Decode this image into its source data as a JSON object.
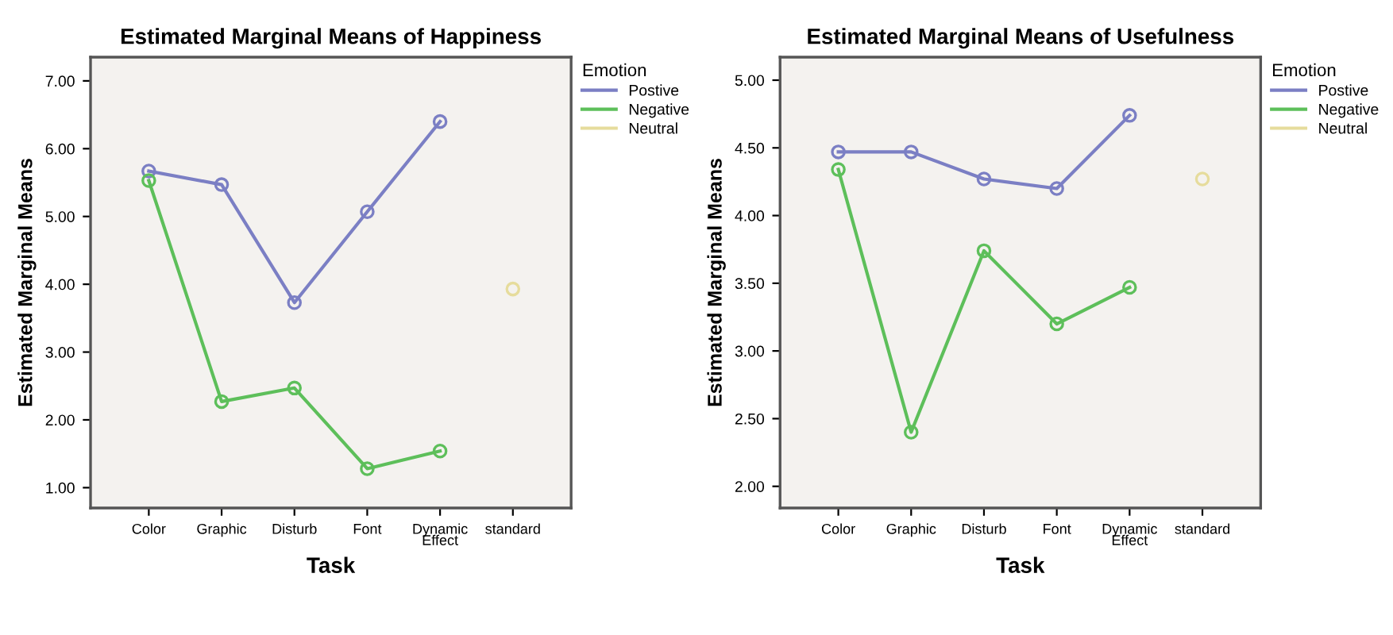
{
  "chart_data": [
    {
      "type": "line",
      "title": "Estimated Marginal Means of Happiness",
      "xlabel": "Task",
      "ylabel": "Estimated Marginal Means",
      "legend_title": "Emotion",
      "legend": "top right",
      "marker": "circle",
      "grid": false,
      "categories": [
        "Color",
        "Graphic",
        "Disturb",
        "Font",
        "Dynamic\nEffect",
        "standard"
      ],
      "ylim": [
        0.7,
        7.35
      ],
      "yticks": [
        {
          "value": 1,
          "label": "1.00"
        },
        {
          "value": 2,
          "label": "2.00"
        },
        {
          "value": 3,
          "label": "3.00"
        },
        {
          "value": 4,
          "label": "4.00"
        },
        {
          "value": 5,
          "label": "5.00"
        },
        {
          "value": 6,
          "label": "6.00"
        },
        {
          "value": 7,
          "label": "7.00"
        }
      ],
      "series": [
        {
          "name": "Postive",
          "color": "#7b7fc4",
          "values": [
            5.67,
            5.47,
            3.73,
            5.07,
            6.4,
            null
          ]
        },
        {
          "name": "Negative",
          "color": "#5dbf5a",
          "values": [
            5.53,
            2.27,
            2.47,
            1.28,
            1.54,
            null
          ]
        },
        {
          "name": "Neutral",
          "color": "#e6dc9c",
          "values": [
            null,
            null,
            null,
            null,
            null,
            3.93
          ]
        }
      ]
    },
    {
      "type": "line",
      "title": "Estimated Marginal Means of Usefulness",
      "xlabel": "Task",
      "ylabel": "Estimated Marginal Means",
      "legend_title": "Emotion",
      "legend": "top right",
      "marker": "circle",
      "grid": false,
      "categories": [
        "Color",
        "Graphic",
        "Disturb",
        "Font",
        "Dynamic\nEffect",
        "standard"
      ],
      "ylim": [
        1.84,
        5.17
      ],
      "yticks": [
        {
          "value": 2,
          "label": "2.00"
        },
        {
          "value": 2.5,
          "label": "2.50"
        },
        {
          "value": 3,
          "label": "3.00"
        },
        {
          "value": 3.5,
          "label": "3.50"
        },
        {
          "value": 4,
          "label": "4.00"
        },
        {
          "value": 4.5,
          "label": "4.50"
        },
        {
          "value": 5,
          "label": "5.00"
        }
      ],
      "series": [
        {
          "name": "Postive",
          "color": "#7b7fc4",
          "values": [
            4.47,
            4.47,
            4.27,
            4.2,
            4.74,
            null
          ]
        },
        {
          "name": "Negative",
          "color": "#5dbf5a",
          "values": [
            4.34,
            2.4,
            3.74,
            3.2,
            3.47,
            null
          ]
        },
        {
          "name": "Neutral",
          "color": "#e6dc9c",
          "values": [
            null,
            null,
            null,
            null,
            null,
            4.27
          ]
        }
      ]
    }
  ]
}
